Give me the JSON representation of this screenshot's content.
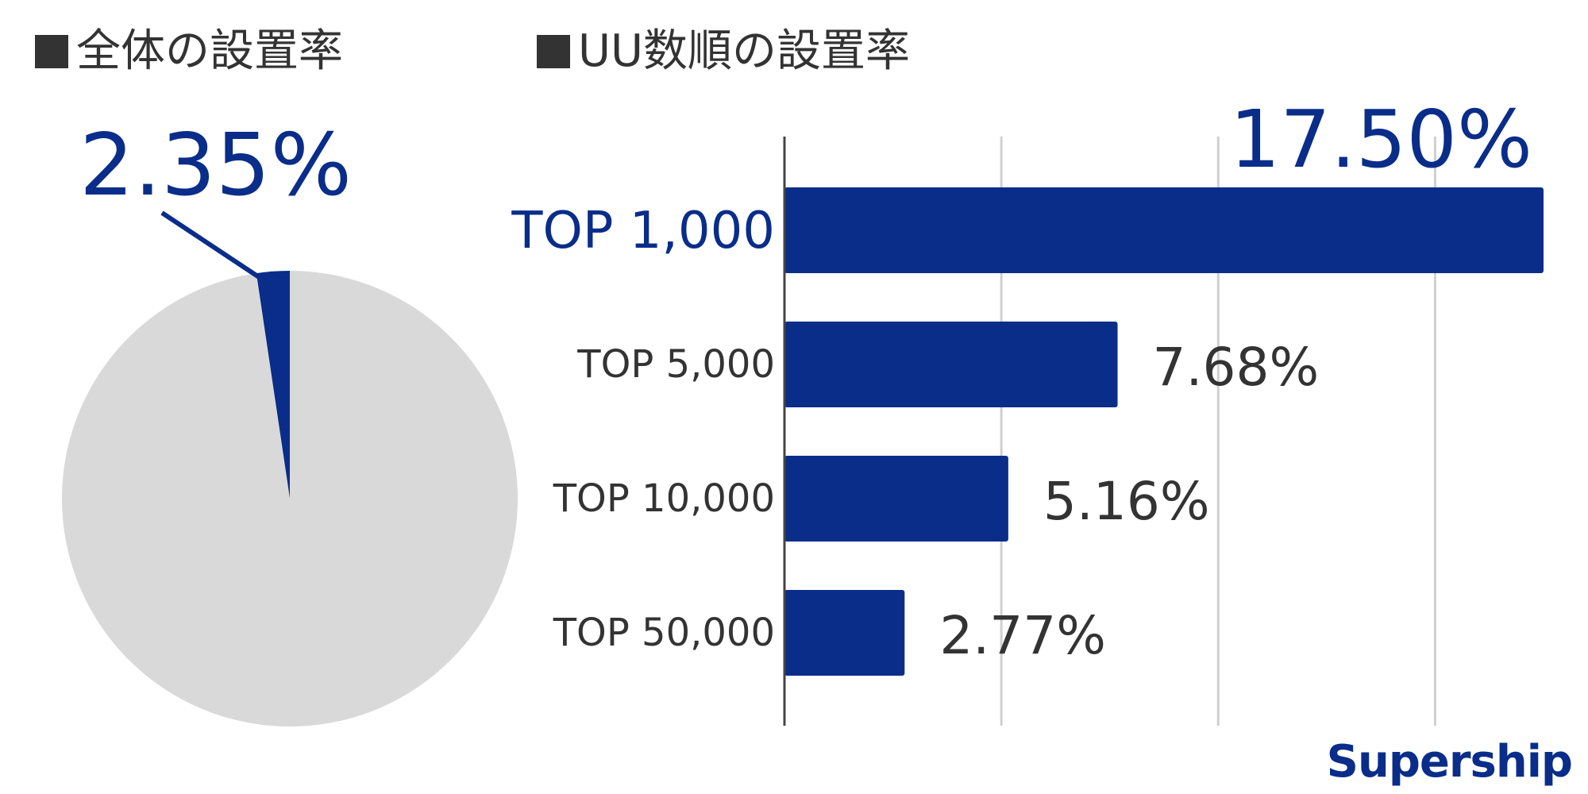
{
  "chart_data": [
    {
      "type": "pie",
      "title": "■全体の設置率",
      "slices": [
        {
          "label": "2.35%",
          "value": 2.35,
          "color": "#0a2d8a"
        },
        {
          "value": 97.65,
          "color": "#d9d9d9"
        }
      ]
    },
    {
      "type": "bar",
      "orientation": "horizontal",
      "title": "■UU数順の設置率",
      "categories": [
        "TOP 1,000",
        "TOP 5,000",
        "TOP 10,000",
        "TOP 50,000"
      ],
      "values": [
        17.5,
        7.68,
        5.16,
        2.77
      ],
      "value_labels": [
        "17.50%",
        "7.68%",
        "5.16%",
        "2.77%"
      ],
      "xlim": [
        0,
        17.5
      ],
      "grid": true,
      "bar_color": "#0a2d8a",
      "highlight_color": "#0a2d8a",
      "label_color": "#333333"
    }
  ],
  "page": {
    "pie_title_text": "全体の設置率",
    "bar_title_text": "UU数順の設置率",
    "logo_text": "Supership"
  }
}
